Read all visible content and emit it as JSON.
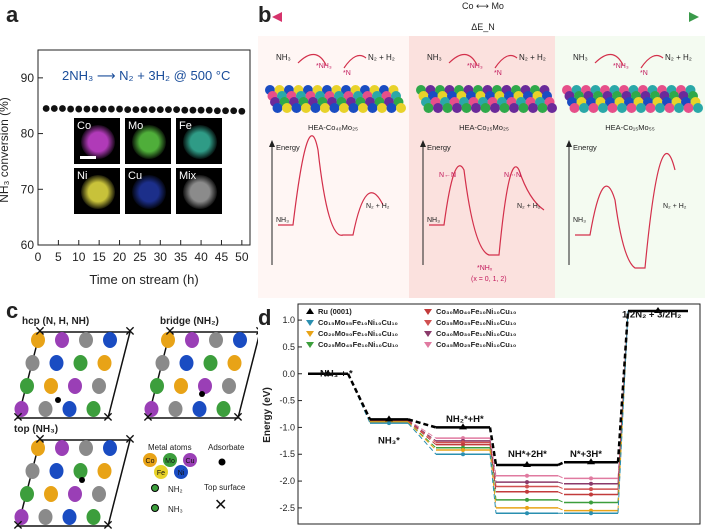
{
  "labels": {
    "a": "a",
    "b": "b",
    "c": "c",
    "d": "d"
  },
  "panel_a": {
    "ylabel": "NH₃ conversion (%)",
    "xlabel": "Time on stream (h)",
    "reaction": "2NH₃ ⟶ N₂ + 3H₂ @ 500 °C",
    "yticks": [
      "60",
      "70",
      "80",
      "90"
    ],
    "xticks": [
      "0",
      "5",
      "10",
      "15",
      "20",
      "25",
      "30",
      "35",
      "40",
      "45",
      "50"
    ],
    "maps": [
      {
        "label": "Co",
        "color": "#b03ab8"
      },
      {
        "label": "Mo",
        "color": "#4fae3a"
      },
      {
        "label": "Fe",
        "color": "#2f9b86"
      },
      {
        "label": "Ni",
        "color": "#c8c23a"
      },
      {
        "label": "Cu",
        "color": "#1c2f8a"
      },
      {
        "label": "Mix",
        "color": "#8b8b8b"
      }
    ]
  },
  "panel_b": {
    "arrow_top": "Co ⟷ Mo",
    "arrow_bottom": "ΔE_N",
    "columns": [
      {
        "nh3": "NH₃",
        "product": "N₂ + H₂",
        "ads1": "*NH₃",
        "ads2": "*N",
        "surface": "HEA-Co₄₀Mo₂₅",
        "energy": "Energy"
      },
      {
        "nh3": "NH₃",
        "product": "N₂ + H₂",
        "ads1": "*NH₃",
        "ads2": "*N",
        "surface": "HEA-Co₂₅Mo₂₅",
        "energy": "Energy",
        "ts1": "N←N",
        "ts2": "N⋯N",
        "inter": "*NHₓ",
        "note": "(x = 0, 1, 2)"
      },
      {
        "nh3": "NH₃",
        "product": "N₂ + H₂",
        "ads1": "*NH₃",
        "ads2": "*N",
        "surface": "HEA-Co₁₅Mo₅₅",
        "energy": "Energy"
      }
    ]
  },
  "panel_c": {
    "titles": [
      "hcp (N, H, NH)",
      "bridge (NH₂)",
      "top (NH₃)"
    ],
    "legend": {
      "metal_atoms": "Metal atoms",
      "adsorbate": "Adsorbate",
      "nh2": "NH₂",
      "nh3": "NH₃",
      "top_surface": "Top surface",
      "elements": [
        "Co",
        "Mo",
        "Fe",
        "Ni",
        "Cu"
      ]
    }
  },
  "chart_data": {
    "type": "line",
    "title": "",
    "xlabel": "",
    "ylabel": "Energy (eV)",
    "ylim": [
      -2.8,
      1.3
    ],
    "yticks": [
      "1.0",
      "0.5",
      "0.0",
      "-0.5",
      "-1.0",
      "-1.5",
      "-2.0",
      "-2.5"
    ],
    "steps": [
      "NH₃ + *",
      "NH₃*",
      "NH₂*+H*",
      "NH*+2H*",
      "N*+3H*",
      "1/2N₂ + 3/2H₂"
    ],
    "legend": [
      "Ru (0001)",
      "Co₁₅Mo₅₅Fe₁₀Ni₁₀Cu₁₀",
      "Co₂₀Mo₅₀Fe₁₀Ni₁₀Cu₁₀",
      "Co₂₅Mo₄₅Fe₁₀Ni₁₀Cu₁₀",
      "Co₃₀Mo₄₀Fe₁₀Ni₁₀Cu₁₀",
      "Co₃₅Mo₃₅Fe₁₀Ni₁₀Cu₁₀",
      "Co₄₀Mo₃₀Fe₁₀Ni₁₀Cu₁₀",
      "Co₄₅Mo₂₅Fe₁₀Ni₁₀Cu₁₀"
    ],
    "series": [
      {
        "name": "Ru (0001)",
        "color": "#000000",
        "values": [
          0.0,
          -0.85,
          -1.0,
          -1.7,
          -1.65,
          1.17
        ]
      },
      {
        "name": "Co₁₅Mo₅₅Fe₁₀Ni₁₀Cu₁₀",
        "color": "#2a8fb0",
        "values": [
          0.0,
          -0.92,
          -1.5,
          -2.6,
          -2.6,
          1.17
        ]
      },
      {
        "name": "Co₂₀Mo₅₀Fe₁₀Ni₁₀Cu₁₀",
        "color": "#e8a317",
        "values": [
          0.0,
          -0.9,
          -1.42,
          -2.5,
          -2.55,
          1.17
        ]
      },
      {
        "name": "Co₂₅Mo₄₅Fe₁₀Ni₁₀Cu₁₀",
        "color": "#3c9e3c",
        "values": [
          0.0,
          -0.9,
          -1.38,
          -2.35,
          -2.4,
          1.17
        ]
      },
      {
        "name": "Co₃₀Mo₄₀Fe₁₀Ni₁₀Cu₁₀",
        "color": "#c23b3b",
        "values": [
          0.0,
          -0.88,
          -1.32,
          -2.2,
          -2.25,
          1.17
        ]
      },
      {
        "name": "Co₃₅Mo₃₅Fe₁₀Ni₁₀Cu₁₀",
        "color": "#d05050",
        "values": [
          0.0,
          -0.88,
          -1.28,
          -2.1,
          -2.15,
          1.17
        ]
      },
      {
        "name": "Co₄₀Mo₃₀Fe₁₀Ni₁₀Cu₁₀",
        "color": "#8a3a6a",
        "values": [
          0.0,
          -0.87,
          -1.25,
          -2.02,
          -2.05,
          1.17
        ]
      },
      {
        "name": "Co₄₅Mo₂₅Fe₁₀Ni₁₀Cu₁₀",
        "color": "#e07aa0",
        "values": [
          0.0,
          -0.86,
          -1.2,
          -1.9,
          -1.95,
          1.17
        ]
      }
    ],
    "panel_a_series": {
      "x": [
        2,
        4,
        6,
        8,
        10,
        12,
        14,
        16,
        18,
        20,
        22,
        24,
        26,
        28,
        30,
        32,
        34,
        36,
        38,
        40,
        42,
        44,
        46,
        48,
        50
      ],
      "y": [
        84.5,
        84.5,
        84.5,
        84.4,
        84.4,
        84.4,
        84.4,
        84.4,
        84.4,
        84.4,
        84.3,
        84.3,
        84.3,
        84.3,
        84.3,
        84.3,
        84.3,
        84.2,
        84.2,
        84.2,
        84.2,
        84.1,
        84.1,
        84.1,
        84.0
      ]
    }
  }
}
